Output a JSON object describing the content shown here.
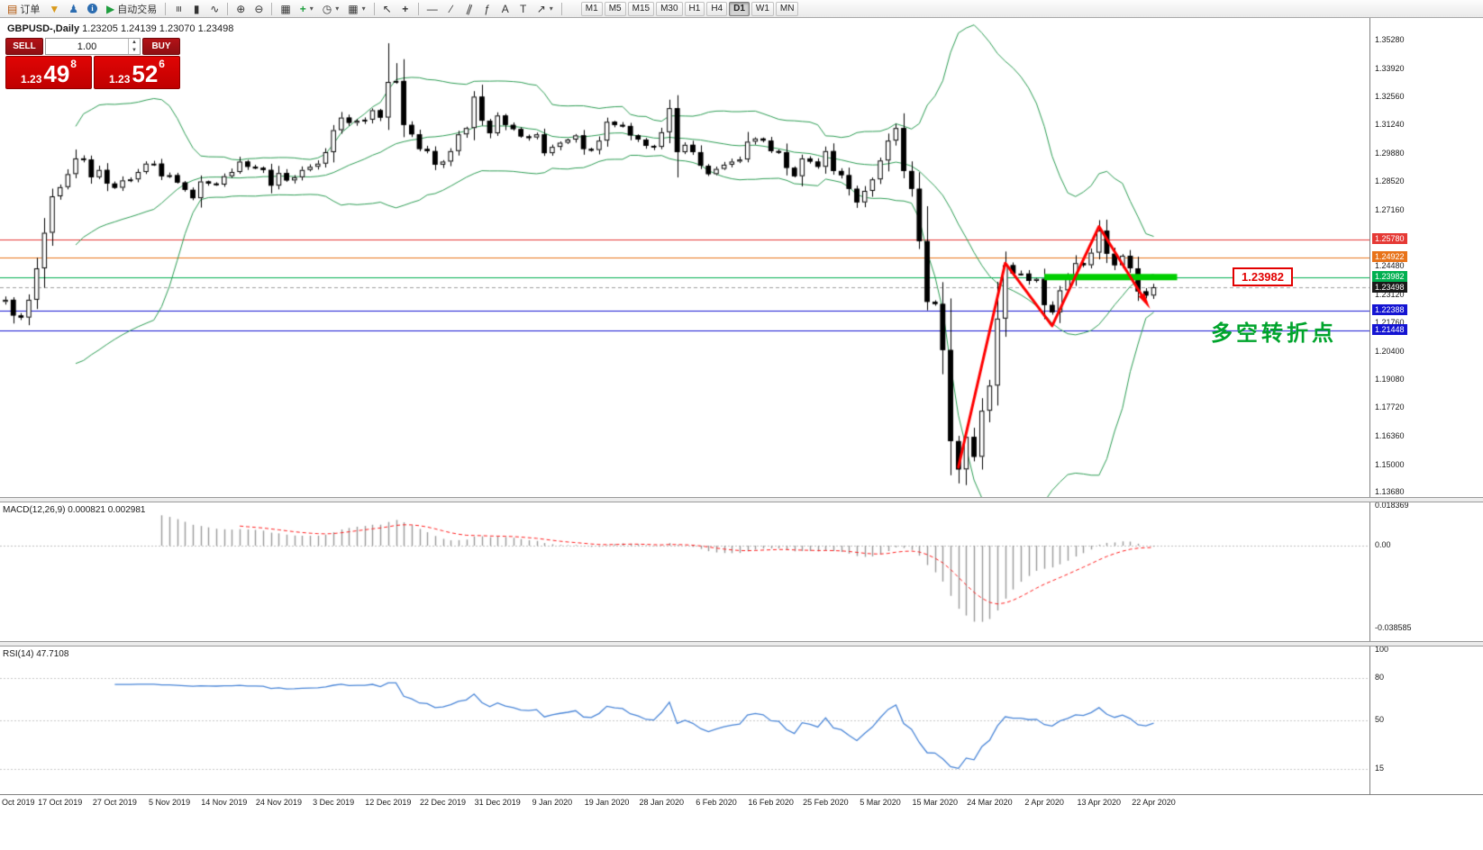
{
  "toolbar": {
    "order_label": "订单",
    "autotrade_label": "自动交易",
    "items": [
      {
        "name": "new-order-button",
        "glyph": "▤",
        "glyph_color": "#b05000",
        "label": "订单"
      },
      {
        "name": "funnel-icon",
        "glyph": "▼",
        "glyph_color": "#d99a1b"
      },
      {
        "name": "user-icon",
        "glyph": "♟",
        "glyph_color": "#2b6cb0"
      },
      {
        "name": "info-icon",
        "glyph": "i",
        "glyph_color": "#ffffff",
        "circle": true
      },
      {
        "name": "autotrade-button",
        "glyph": "▶",
        "glyph_color": "#1e9e3e",
        "label": "自动交易"
      },
      {
        "sep": true
      },
      {
        "name": "bar-chart-icon",
        "glyph": "≡",
        "rotate": 90
      },
      {
        "name": "candlestick-chart-icon",
        "glyph": "▮"
      },
      {
        "name": "line-chart-icon",
        "glyph": "∿"
      },
      {
        "sep": true
      },
      {
        "name": "zoom-in-icon",
        "glyph": "⊕"
      },
      {
        "name": "zoom-out-icon",
        "glyph": "⊖"
      },
      {
        "sep": true
      },
      {
        "name": "tile-windows-icon",
        "glyph": "▦"
      },
      {
        "name": "indicators-add-icon",
        "glyph": "+",
        "glyph_color": "#1e9e3e",
        "bold": true,
        "chevron": true
      },
      {
        "name": "period-clock-icon",
        "glyph": "◷",
        "chevron": true
      },
      {
        "name": "template-grid-icon",
        "glyph": "▦",
        "chevron": true
      },
      {
        "sep": true
      },
      {
        "name": "cursor-icon",
        "glyph": "↖"
      },
      {
        "name": "crosshair-icon",
        "glyph": "+",
        "bold": true
      },
      {
        "sep": true
      },
      {
        "name": "horizontal-line-icon",
        "glyph": "—"
      },
      {
        "name": "trendline-icon",
        "glyph": "∕"
      },
      {
        "name": "channel-icon",
        "glyph": "∥",
        "rotate": 20
      },
      {
        "name": "fibonacci-icon",
        "glyph": "ƒ"
      },
      {
        "name": "text-icon",
        "glyph": "A"
      },
      {
        "name": "text-label-icon",
        "glyph": "T"
      },
      {
        "name": "arrows-icon",
        "glyph": "↗",
        "chevron": true
      },
      {
        "sep": true
      }
    ],
    "timeframes": [
      "M1",
      "M5",
      "M15",
      "M30",
      "H1",
      "H4",
      "D1",
      "W1",
      "MN"
    ],
    "active_timeframe": "D1"
  },
  "chart": {
    "title": "GBPUSD-,Daily",
    "ohlc": "1.23205 1.24139 1.23070 1.23498"
  },
  "trade": {
    "sell_label": "SELL",
    "buy_label": "BUY",
    "volume": "1.00",
    "sell_small": "1.23",
    "sell_big": "49",
    "sell_sup": "8",
    "buy_small": "1.23",
    "buy_big": "52",
    "buy_sup": "6"
  },
  "annotations": {
    "price_label": "1.23982",
    "cn_text": "多空转折点",
    "cn_color": "#00a42c"
  },
  "axis": {
    "price_ticks": [
      "1.35280",
      "1.33920",
      "1.32560",
      "1.31240",
      "1.29880",
      "1.28520",
      "1.27160",
      "1.24480",
      "1.23120",
      "1.21760",
      "1.20400",
      "1.19080",
      "1.17720",
      "1.16360",
      "1.15000",
      "1.13680"
    ],
    "special_labels": [
      {
        "text": "1.25780",
        "bg": "#e53935"
      },
      {
        "text": "1.24922",
        "bg": "#e8731a"
      },
      {
        "text": "1.23982",
        "bg": "#00b050"
      },
      {
        "text": "1.23498",
        "bg": "#1a1a1a"
      },
      {
        "text": "1.22388",
        "bg": "#1414d2"
      },
      {
        "text": "1.21448",
        "bg": "#1414d2"
      }
    ]
  },
  "panels": {
    "macd": {
      "title": "MACD(12,26,9)",
      "values": "0.000821 0.002981",
      "axis_labels": [
        "0.018369",
        "0.00",
        "-0.038585"
      ],
      "hist_color": "#9a9a9a",
      "signal_color": "#ff2020"
    },
    "rsi": {
      "title": "RSI(14)",
      "value": "47.7108",
      "axis_labels": [
        "100",
        "80",
        "50",
        "15"
      ],
      "levels": [
        80,
        50,
        15
      ],
      "line_color": "#4a86d8"
    }
  },
  "dates": [
    "Oct 2019",
    "17 Oct 2019",
    "27 Oct 2019",
    "5 Nov 2019",
    "14 Nov 2019",
    "24 Nov 2019",
    "3 Dec 2019",
    "12 Dec 2019",
    "22 Dec 2019",
    "31 Dec 2019",
    "9 Jan 2020",
    "19 Jan 2020",
    "28 Jan 2020",
    "6 Feb 2020",
    "16 Feb 2020",
    "25 Feb 2020",
    "5 Mar 2020",
    "15 Mar 2020",
    "24 Mar 2020",
    "2 Apr 2020",
    "13 Apr 2020",
    "22 Apr 2020"
  ],
  "chart_data": {
    "type": "candlestick",
    "symbol": "GBPUSD-",
    "timeframe": "Daily",
    "ohlc_display": {
      "open": "1.23205",
      "high": "1.24139",
      "low": "1.23070",
      "close": "1.23498"
    },
    "up_color": "#ffffff",
    "down_color": "#000000",
    "wick_color": "#000000",
    "bands_color": "#2e9e55",
    "closes": [
      1.229,
      1.2215,
      1.2205,
      1.229,
      1.244,
      1.261,
      1.2784,
      1.2828,
      1.289,
      1.2965,
      1.296,
      1.2875,
      1.291,
      1.2845,
      1.2825,
      1.286,
      1.2865,
      1.29,
      1.294,
      1.294,
      1.288,
      1.2885,
      1.285,
      1.2815,
      1.2775,
      1.2855,
      1.2845,
      1.284,
      1.288,
      1.29,
      1.295,
      1.2925,
      1.292,
      1.291,
      1.2835,
      1.2895,
      1.286,
      1.2875,
      1.291,
      1.2925,
      1.294,
      1.2995,
      1.31,
      1.316,
      1.3135,
      1.3145,
      1.315,
      1.3195,
      1.316,
      1.333,
      1.3335,
      1.3125,
      1.308,
      1.301,
      1.3,
      1.2935,
      1.295,
      1.3,
      1.308,
      1.311,
      1.326,
      1.3145,
      1.3085,
      1.317,
      1.3125,
      1.3105,
      1.307,
      1.3065,
      1.308,
      1.299,
      1.302,
      1.304,
      1.3055,
      1.3075,
      1.301,
      1.3005,
      1.305,
      1.314,
      1.3125,
      1.312,
      1.3075,
      1.3055,
      1.3025,
      1.302,
      1.309,
      1.3205,
      1.2995,
      1.303,
      1.2995,
      1.293,
      1.289,
      1.2915,
      1.2935,
      1.295,
      1.296,
      1.3045,
      1.306,
      1.305,
      1.3,
      1.2995,
      1.292,
      1.288,
      1.2965,
      1.295,
      1.2925,
      1.3,
      1.2905,
      1.2885,
      1.282,
      1.2755,
      1.281,
      1.2865,
      1.2955,
      1.305,
      1.311,
      1.2905,
      1.282,
      1.257,
      1.228,
      1.227,
      1.205,
      1.1615,
      1.148,
      1.1635,
      1.154,
      1.176,
      1.188,
      1.22,
      1.2455,
      1.2415,
      1.2415,
      1.238,
      1.239,
      1.2265,
      1.223,
      1.2335,
      1.239,
      1.2465,
      1.2455,
      1.2515,
      1.262,
      1.251,
      1.2455,
      1.25,
      1.244,
      1.233,
      1.231,
      1.235
    ],
    "wick_overrides": {
      "49": {
        "h": 1.3515
      },
      "50": {
        "h": 1.342
      },
      "120": {
        "l": 1.195
      },
      "121": {
        "l": 1.1452
      },
      "122": {
        "l": 1.1413
      },
      "123": {
        "l": 1.1475
      }
    },
    "indicators": [
      {
        "type": "bollinger",
        "period": 20,
        "deviation": 2
      },
      {
        "type": "macd",
        "fast": 12,
        "slow": 26,
        "signal": 9,
        "current": [
          0.000821,
          0.002981
        ]
      },
      {
        "type": "rsi",
        "period": 14,
        "current": 47.7108
      }
    ],
    "horizontal_lines": [
      {
        "price": 1.2578,
        "color": "#e53935",
        "style": "solid",
        "width": 1
      },
      {
        "price": 1.24922,
        "color": "#e8731a",
        "style": "solid",
        "width": 1
      },
      {
        "price": 1.23982,
        "color": "#00b050",
        "style": "solid",
        "width": 1
      },
      {
        "price": 1.23498,
        "color": "#a0a0a0",
        "style": "dash",
        "width": 1
      },
      {
        "price": 1.22388,
        "color": "#1414d2",
        "style": "solid",
        "width": 1
      },
      {
        "price": 1.21448,
        "color": "#1414d2",
        "style": "solid",
        "width": 1
      }
    ],
    "zigzag": {
      "color": "#ff0000",
      "width": 3,
      "points": [
        [
          122,
          1.149
        ],
        [
          128,
          1.2465
        ],
        [
          134,
          1.2165
        ],
        [
          140,
          1.264
        ],
        [
          146,
          1.228
        ]
      ]
    },
    "green_bar": {
      "from_index": 133,
      "to_index": 150,
      "price": 1.23982,
      "color": "#00ce00",
      "thickness": 7
    }
  }
}
